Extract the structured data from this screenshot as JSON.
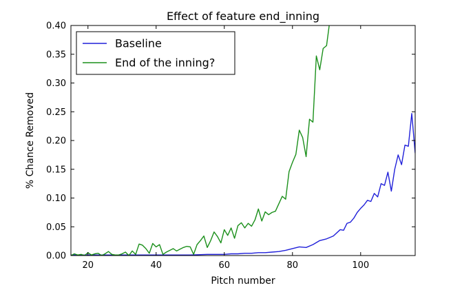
{
  "chart_data": {
    "type": "line",
    "title": "Effect of feature end_inning",
    "xlabel": "Pitch number",
    "ylabel": "% Chance Removed",
    "xlim": [
      15,
      116
    ],
    "ylim": [
      0,
      0.4
    ],
    "xticks": [
      20,
      40,
      60,
      80,
      100
    ],
    "yticks": [
      0.0,
      0.05,
      0.1,
      0.15,
      0.2,
      0.25,
      0.3,
      0.35,
      0.4
    ],
    "ytick_labels": [
      "0.00",
      "0.05",
      "0.10",
      "0.15",
      "0.20",
      "0.25",
      "0.30",
      "0.35",
      "0.40"
    ],
    "grid": false,
    "legend_position": "upper-left",
    "series": [
      {
        "name": "Baseline",
        "color": "#1f1fd9",
        "x": [
          15,
          20,
          25,
          30,
          35,
          40,
          45,
          50,
          55,
          60,
          62,
          64,
          66,
          68,
          70,
          72,
          74,
          76,
          78,
          80,
          82,
          84,
          86,
          88,
          90,
          92,
          94,
          95,
          96,
          97,
          98,
          99,
          100,
          101,
          102,
          103,
          104,
          105,
          106,
          107,
          108,
          109,
          110,
          111,
          112,
          113,
          114,
          115,
          116
        ],
        "y": [
          0.001,
          0.001,
          0.001,
          0.001,
          0.001,
          0.001,
          0.001,
          0.001,
          0.002,
          0.002,
          0.003,
          0.003,
          0.004,
          0.004,
          0.005,
          0.005,
          0.006,
          0.007,
          0.009,
          0.012,
          0.015,
          0.014,
          0.019,
          0.026,
          0.029,
          0.034,
          0.045,
          0.044,
          0.056,
          0.058,
          0.065,
          0.075,
          0.082,
          0.088,
          0.096,
          0.094,
          0.108,
          0.102,
          0.125,
          0.122,
          0.145,
          0.112,
          0.15,
          0.175,
          0.158,
          0.192,
          0.19,
          0.247,
          0.178
        ]
      },
      {
        "name": "End of the inning?",
        "color": "#1a8f1a",
        "x": [
          15,
          16,
          17,
          18,
          19,
          20,
          21,
          22,
          23,
          24,
          25,
          26,
          27,
          28,
          29,
          30,
          31,
          32,
          33,
          34,
          35,
          36,
          37,
          38,
          39,
          40,
          41,
          42,
          43,
          44,
          45,
          46,
          47,
          48,
          49,
          50,
          51,
          52,
          53,
          54,
          55,
          56,
          57,
          58,
          59,
          60,
          61,
          62,
          63,
          64,
          65,
          66,
          67,
          68,
          69,
          70,
          71,
          72,
          73,
          74,
          75,
          76,
          77,
          78,
          79,
          80,
          81,
          82,
          83,
          84,
          85,
          86,
          87,
          88,
          89,
          90,
          91
        ],
        "y": [
          0.0,
          0.003,
          0.001,
          0.002,
          0.0,
          0.005,
          0.001,
          0.003,
          0.004,
          0.0,
          0.003,
          0.007,
          0.002,
          0.001,
          0.001,
          0.003,
          0.006,
          0.0,
          0.008,
          0.002,
          0.02,
          0.018,
          0.012,
          0.004,
          0.021,
          0.015,
          0.019,
          0.002,
          0.006,
          0.009,
          0.012,
          0.008,
          0.011,
          0.014,
          0.016,
          0.015,
          0.002,
          0.019,
          0.026,
          0.034,
          0.014,
          0.026,
          0.041,
          0.033,
          0.022,
          0.045,
          0.035,
          0.048,
          0.03,
          0.052,
          0.057,
          0.048,
          0.056,
          0.051,
          0.062,
          0.081,
          0.06,
          0.076,
          0.071,
          0.075,
          0.077,
          0.09,
          0.103,
          0.098,
          0.146,
          0.162,
          0.176,
          0.218,
          0.205,
          0.172,
          0.237,
          0.232,
          0.347,
          0.323,
          0.36,
          0.365,
          0.41
        ]
      }
    ]
  }
}
